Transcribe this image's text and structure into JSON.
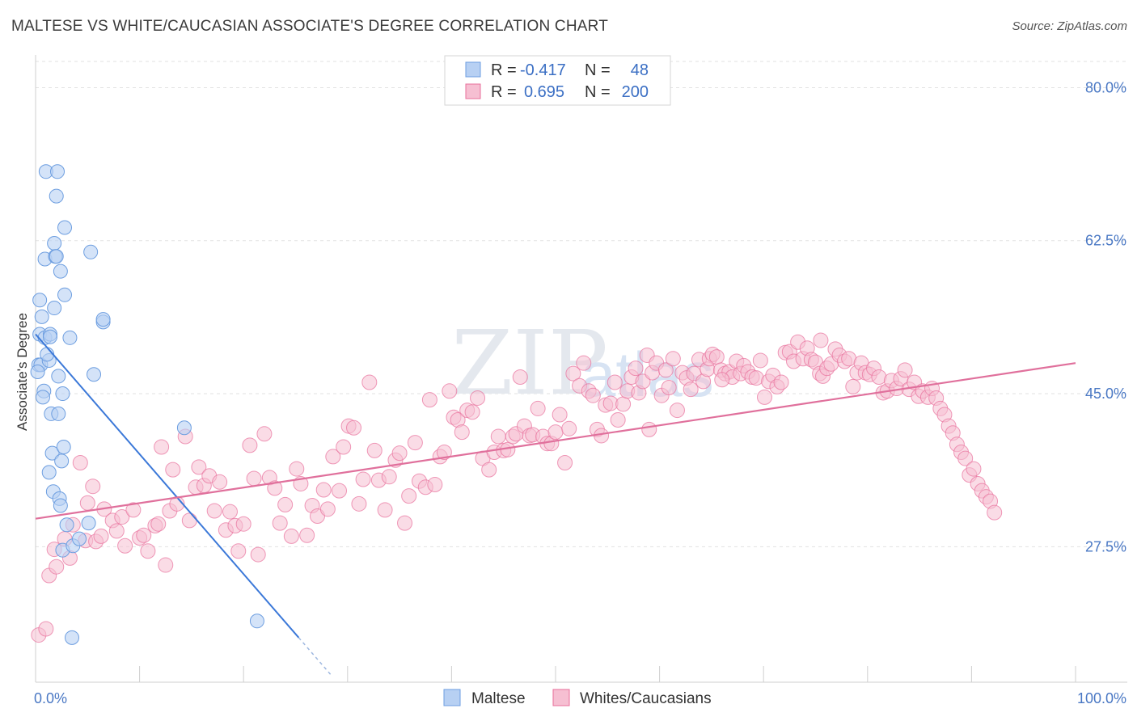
{
  "title": "MALTESE VS WHITE/CAUCASIAN ASSOCIATE'S DEGREE CORRELATION CHART",
  "source": "Source: ZipAtlas.com",
  "watermark": {
    "zip": "ZIP",
    "atlas": "atlas"
  },
  "colors": {
    "blue": "#6d9ee0",
    "blue_fill": "#b7d0f3",
    "pink": "#e86f9b",
    "pink_fill": "#f6bfd2",
    "blue_line": "#3b78d8",
    "pink_line": "#e0709c",
    "grid": "#e2e2e2"
  },
  "legend": {
    "rows": [
      {
        "r_label": "R =",
        "r_value": "-0.417",
        "n_label": "N =",
        "n_value": "48"
      },
      {
        "r_label": "R =",
        "r_value": "0.695",
        "n_label": "N =",
        "n_value": "200"
      }
    ]
  },
  "chart_data": {
    "type": "scatter",
    "ylabel": "Associate's Degree",
    "xlabel": "",
    "x_tick_labels": [
      "0.0%",
      "100.0%"
    ],
    "y_tick_labels": [
      "27.5%",
      "45.0%",
      "62.5%",
      "80.0%"
    ],
    "y_ticks": [
      27.5,
      45.0,
      62.5,
      80.0
    ],
    "xlim": [
      0,
      100
    ],
    "ylim": [
      12,
      83
    ],
    "series": [
      {
        "name": "Maltese",
        "color": "#6d9ee0",
        "trend": {
          "x": [
            0.0,
            25.3
          ],
          "y": [
            51.8,
            17.1
          ],
          "dashed_to": [
            28.5,
            12.7
          ]
        },
        "points": [
          [
            0.3,
            48.3
          ],
          [
            0.4,
            55.7
          ],
          [
            0.4,
            51.8
          ],
          [
            0.5,
            48.3
          ],
          [
            0.6,
            53.8
          ],
          [
            0.8,
            45.3
          ],
          [
            0.9,
            51.4
          ],
          [
            0.9,
            60.4
          ],
          [
            1.0,
            70.4
          ],
          [
            1.3,
            36.0
          ],
          [
            1.3,
            48.8
          ],
          [
            1.4,
            51.8
          ],
          [
            1.4,
            51.5
          ],
          [
            1.5,
            42.7
          ],
          [
            1.6,
            38.2
          ],
          [
            1.7,
            33.8
          ],
          [
            1.8,
            62.2
          ],
          [
            1.8,
            54.8
          ],
          [
            1.9,
            60.7
          ],
          [
            2.0,
            60.7
          ],
          [
            2.0,
            67.6
          ],
          [
            2.1,
            70.4
          ],
          [
            2.2,
            42.7
          ],
          [
            2.2,
            47.0
          ],
          [
            2.3,
            33.0
          ],
          [
            2.4,
            32.2
          ],
          [
            2.5,
            37.3
          ],
          [
            2.6,
            27.1
          ],
          [
            2.6,
            45.0
          ],
          [
            2.7,
            38.9
          ],
          [
            2.8,
            64.0
          ],
          [
            2.8,
            56.3
          ],
          [
            3.0,
            30.0
          ],
          [
            3.3,
            51.4
          ],
          [
            3.5,
            17.1
          ],
          [
            3.6,
            27.6
          ],
          [
            5.1,
            30.2
          ],
          [
            5.3,
            61.2
          ],
          [
            5.6,
            47.2
          ],
          [
            6.5,
            53.2
          ],
          [
            6.5,
            53.5
          ],
          [
            14.3,
            41.1
          ],
          [
            21.3,
            19.0
          ],
          [
            0.2,
            47.5
          ],
          [
            1.1,
            49.5
          ],
          [
            2.4,
            59.0
          ],
          [
            0.7,
            44.6
          ],
          [
            4.2,
            28.4
          ]
        ]
      },
      {
        "name": "Whites/Caucasians",
        "color": "#e86f9b",
        "trend": {
          "x": [
            0.0,
            100.0
          ],
          "y": [
            30.7,
            48.5
          ]
        },
        "points": [
          [
            0.3,
            17.4
          ],
          [
            1.0,
            18.1
          ],
          [
            1.3,
            24.2
          ],
          [
            1.8,
            27.2
          ],
          [
            2.0,
            25.2
          ],
          [
            2.8,
            28.4
          ],
          [
            3.3,
            26.2
          ],
          [
            3.6,
            30.0
          ],
          [
            4.3,
            37.1
          ],
          [
            4.8,
            28.2
          ],
          [
            5.0,
            32.5
          ],
          [
            5.5,
            34.4
          ],
          [
            5.8,
            28.1
          ],
          [
            6.3,
            28.7
          ],
          [
            6.6,
            31.8
          ],
          [
            7.4,
            30.5
          ],
          [
            7.8,
            29.3
          ],
          [
            8.3,
            30.9
          ],
          [
            8.6,
            27.6
          ],
          [
            9.4,
            31.7
          ],
          [
            10.0,
            28.5
          ],
          [
            10.4,
            28.8
          ],
          [
            10.8,
            27.0
          ],
          [
            11.5,
            29.9
          ],
          [
            11.8,
            30.1
          ],
          [
            12.1,
            38.9
          ],
          [
            12.5,
            25.4
          ],
          [
            12.9,
            31.6
          ],
          [
            13.2,
            36.3
          ],
          [
            13.6,
            32.4
          ],
          [
            14.4,
            40.1
          ],
          [
            14.8,
            30.5
          ],
          [
            15.4,
            34.3
          ],
          [
            15.7,
            36.6
          ],
          [
            16.2,
            34.5
          ],
          [
            16.7,
            35.6
          ],
          [
            17.2,
            31.6
          ],
          [
            17.7,
            34.9
          ],
          [
            18.3,
            29.4
          ],
          [
            18.7,
            31.5
          ],
          [
            19.2,
            29.9
          ],
          [
            19.5,
            27.0
          ],
          [
            20.0,
            30.1
          ],
          [
            20.6,
            39.1
          ],
          [
            21.0,
            35.3
          ],
          [
            21.4,
            26.6
          ],
          [
            22.0,
            40.4
          ],
          [
            22.5,
            35.4
          ],
          [
            23.0,
            34.2
          ],
          [
            23.5,
            30.2
          ],
          [
            24.0,
            32.3
          ],
          [
            24.6,
            28.7
          ],
          [
            25.1,
            36.4
          ],
          [
            25.5,
            34.7
          ],
          [
            26.1,
            28.8
          ],
          [
            26.6,
            32.2
          ],
          [
            27.1,
            31.0
          ],
          [
            27.7,
            34.0
          ],
          [
            28.1,
            31.8
          ],
          [
            28.6,
            37.8
          ],
          [
            29.2,
            33.9
          ],
          [
            29.6,
            38.9
          ],
          [
            30.1,
            41.3
          ],
          [
            30.6,
            41.1
          ],
          [
            31.1,
            32.4
          ],
          [
            31.5,
            35.2
          ],
          [
            32.1,
            46.3
          ],
          [
            32.6,
            38.5
          ],
          [
            33.0,
            35.1
          ],
          [
            33.6,
            31.7
          ],
          [
            34.0,
            35.5
          ],
          [
            34.6,
            37.4
          ],
          [
            35.0,
            38.2
          ],
          [
            35.5,
            30.2
          ],
          [
            35.9,
            33.3
          ],
          [
            36.5,
            39.4
          ],
          [
            36.9,
            35.0
          ],
          [
            37.5,
            34.3
          ],
          [
            37.9,
            44.3
          ],
          [
            38.4,
            34.6
          ],
          [
            38.9,
            37.8
          ],
          [
            39.3,
            38.3
          ],
          [
            39.8,
            45.3
          ],
          [
            40.2,
            42.3
          ],
          [
            40.6,
            42.0
          ],
          [
            41.0,
            40.6
          ],
          [
            41.5,
            43.1
          ],
          [
            42.0,
            42.9
          ],
          [
            42.5,
            44.5
          ],
          [
            43.0,
            37.6
          ],
          [
            43.6,
            36.3
          ],
          [
            44.1,
            38.3
          ],
          [
            44.5,
            40.1
          ],
          [
            45.0,
            38.5
          ],
          [
            45.4,
            38.6
          ],
          [
            45.9,
            40.1
          ],
          [
            46.2,
            40.4
          ],
          [
            46.6,
            46.9
          ],
          [
            47.0,
            41.3
          ],
          [
            47.5,
            40.2
          ],
          [
            47.8,
            40.3
          ],
          [
            48.3,
            43.3
          ],
          [
            48.8,
            40.1
          ],
          [
            49.2,
            39.3
          ],
          [
            49.6,
            39.3
          ],
          [
            50.0,
            40.6
          ],
          [
            50.4,
            42.6
          ],
          [
            50.9,
            37.1
          ],
          [
            51.3,
            41.0
          ],
          [
            51.7,
            47.3
          ],
          [
            52.3,
            45.9
          ],
          [
            52.7,
            48.5
          ],
          [
            53.2,
            45.3
          ],
          [
            53.6,
            44.8
          ],
          [
            54.0,
            40.9
          ],
          [
            54.4,
            40.2
          ],
          [
            54.8,
            43.7
          ],
          [
            55.3,
            43.9
          ],
          [
            55.7,
            46.3
          ],
          [
            56.0,
            42.0
          ],
          [
            56.5,
            43.8
          ],
          [
            56.9,
            45.3
          ],
          [
            57.3,
            46.9
          ],
          [
            57.7,
            47.9
          ],
          [
            58.0,
            45.1
          ],
          [
            58.4,
            46.4
          ],
          [
            58.8,
            49.4
          ],
          [
            59.3,
            47.4
          ],
          [
            59.7,
            48.5
          ],
          [
            60.2,
            44.8
          ],
          [
            60.6,
            47.7
          ],
          [
            60.9,
            45.7
          ],
          [
            61.3,
            49.0
          ],
          [
            61.7,
            43.1
          ],
          [
            62.2,
            47.4
          ],
          [
            62.6,
            46.8
          ],
          [
            63.0,
            45.5
          ],
          [
            63.3,
            47.3
          ],
          [
            63.8,
            48.9
          ],
          [
            64.2,
            46.4
          ],
          [
            64.6,
            47.8
          ],
          [
            64.8,
            49.0
          ],
          [
            65.1,
            49.5
          ],
          [
            65.5,
            49.2
          ],
          [
            65.9,
            47.7
          ],
          [
            66.3,
            47.3
          ],
          [
            66.7,
            47.5
          ],
          [
            67.0,
            46.9
          ],
          [
            67.4,
            48.7
          ],
          [
            67.8,
            47.3
          ],
          [
            68.1,
            48.2
          ],
          [
            68.5,
            47.5
          ],
          [
            68.9,
            46.9
          ],
          [
            69.3,
            46.8
          ],
          [
            69.7,
            48.8
          ],
          [
            70.1,
            44.6
          ],
          [
            70.5,
            46.4
          ],
          [
            70.9,
            47.1
          ],
          [
            71.3,
            45.8
          ],
          [
            71.7,
            46.3
          ],
          [
            72.1,
            49.7
          ],
          [
            72.5,
            49.8
          ],
          [
            72.9,
            48.7
          ],
          [
            73.3,
            50.9
          ],
          [
            73.8,
            49.0
          ],
          [
            74.2,
            50.2
          ],
          [
            74.6,
            48.9
          ],
          [
            75.0,
            48.6
          ],
          [
            75.4,
            47.3
          ],
          [
            75.7,
            47.0
          ],
          [
            76.1,
            47.9
          ],
          [
            76.5,
            48.4
          ],
          [
            76.9,
            50.1
          ],
          [
            77.3,
            49.4
          ],
          [
            77.8,
            48.7
          ],
          [
            78.2,
            49.0
          ],
          [
            78.6,
            45.8
          ],
          [
            79.0,
            47.4
          ],
          [
            79.4,
            48.5
          ],
          [
            79.8,
            47.4
          ],
          [
            80.2,
            47.2
          ],
          [
            80.6,
            47.9
          ],
          [
            81.1,
            46.9
          ],
          [
            81.5,
            45.1
          ],
          [
            81.9,
            45.3
          ],
          [
            82.3,
            46.5
          ],
          [
            82.8,
            45.6
          ],
          [
            83.2,
            46.7
          ],
          [
            83.6,
            47.7
          ],
          [
            84.0,
            45.5
          ],
          [
            84.5,
            46.3
          ],
          [
            84.9,
            44.7
          ],
          [
            85.3,
            45.3
          ],
          [
            85.8,
            44.6
          ],
          [
            86.2,
            45.6
          ],
          [
            86.6,
            44.5
          ],
          [
            87.0,
            43.3
          ],
          [
            87.4,
            42.6
          ],
          [
            87.8,
            41.3
          ],
          [
            88.2,
            40.5
          ],
          [
            88.6,
            39.2
          ],
          [
            89.0,
            38.3
          ],
          [
            89.4,
            37.6
          ],
          [
            89.8,
            35.7
          ],
          [
            90.2,
            36.4
          ],
          [
            90.6,
            34.7
          ],
          [
            91.0,
            33.9
          ],
          [
            91.4,
            33.2
          ],
          [
            91.8,
            32.7
          ],
          [
            92.2,
            31.4
          ],
          [
            75.5,
            51.1
          ],
          [
            59.0,
            40.9
          ],
          [
            66.0,
            46.6
          ]
        ]
      }
    ],
    "legend_position": "top-center",
    "grid": true
  },
  "bottom_legend": [
    "Maltese",
    "Whites/Caucasians"
  ]
}
